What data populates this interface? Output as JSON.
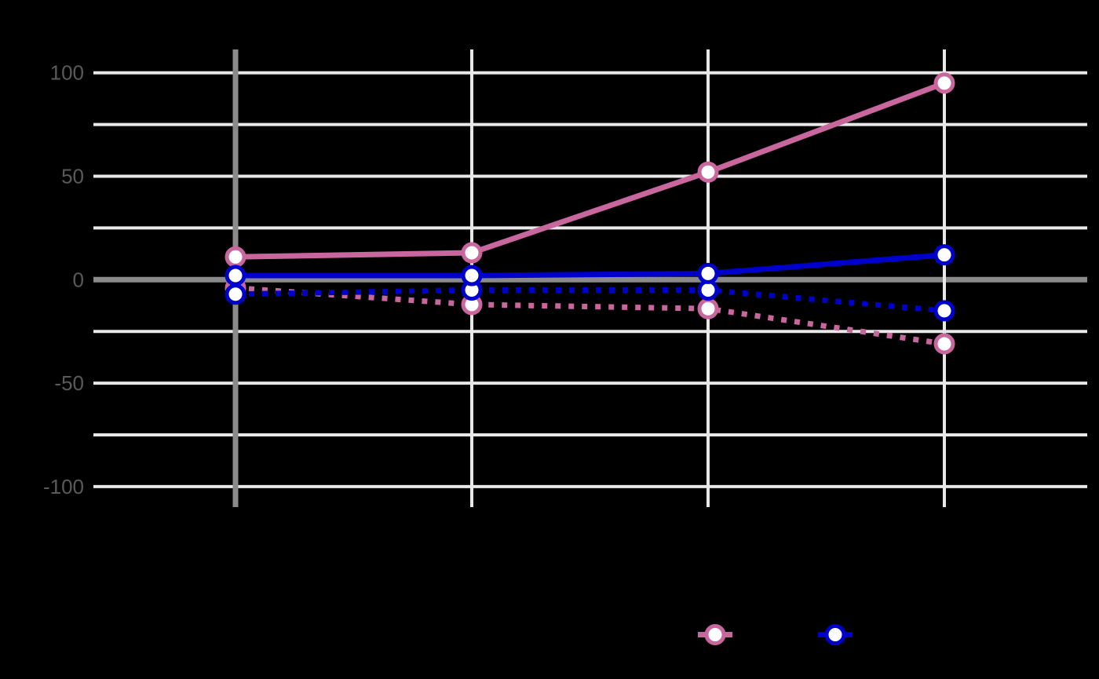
{
  "chart_data": {
    "type": "line",
    "title": "",
    "xlabel": "",
    "ylabel": "",
    "x_positions": [
      1,
      2,
      3,
      4
    ],
    "x_tick_labels_visible": false,
    "y_axis": {
      "ticks": [
        {
          "label": "100",
          "value": 100
        },
        {
          "label": "50",
          "value": 50
        },
        {
          "label": "0",
          "value": 0
        },
        {
          "label": "-50",
          "value": -50
        },
        {
          "label": "-100",
          "value": -100
        }
      ],
      "minor_gridline_step": 25,
      "ylim": [
        -112,
        112
      ],
      "grid": true
    },
    "series": [
      {
        "name": "pink-dotted",
        "color": "#C9669E",
        "style": "dotted",
        "values": [
          -4,
          -12,
          -14,
          -31
        ]
      },
      {
        "name": "blue-dotted",
        "color": "#0000CD",
        "style": "dotted",
        "values": [
          -7,
          -5,
          -5,
          -15
        ]
      },
      {
        "name": "pink-solid",
        "color": "#C9669E",
        "style": "solid",
        "values": [
          11,
          13,
          52,
          95
        ]
      },
      {
        "name": "blue-solid",
        "color": "#0000CD",
        "style": "solid",
        "values": [
          2,
          2,
          3,
          12
        ]
      }
    ],
    "legend": {
      "position": "bottom",
      "entries": [
        {
          "label": "",
          "color": "#C9669E",
          "marker": "open-circle"
        },
        {
          "label": "",
          "color": "#0000CD",
          "marker": "open-circle"
        }
      ]
    },
    "colors": {
      "background": "#000000",
      "minor_grid": "#E8E8E8",
      "axis_gray": "#8A8A8A",
      "tick_label": "#5A5A5A",
      "marker_fill": "#FFFFFF"
    }
  }
}
